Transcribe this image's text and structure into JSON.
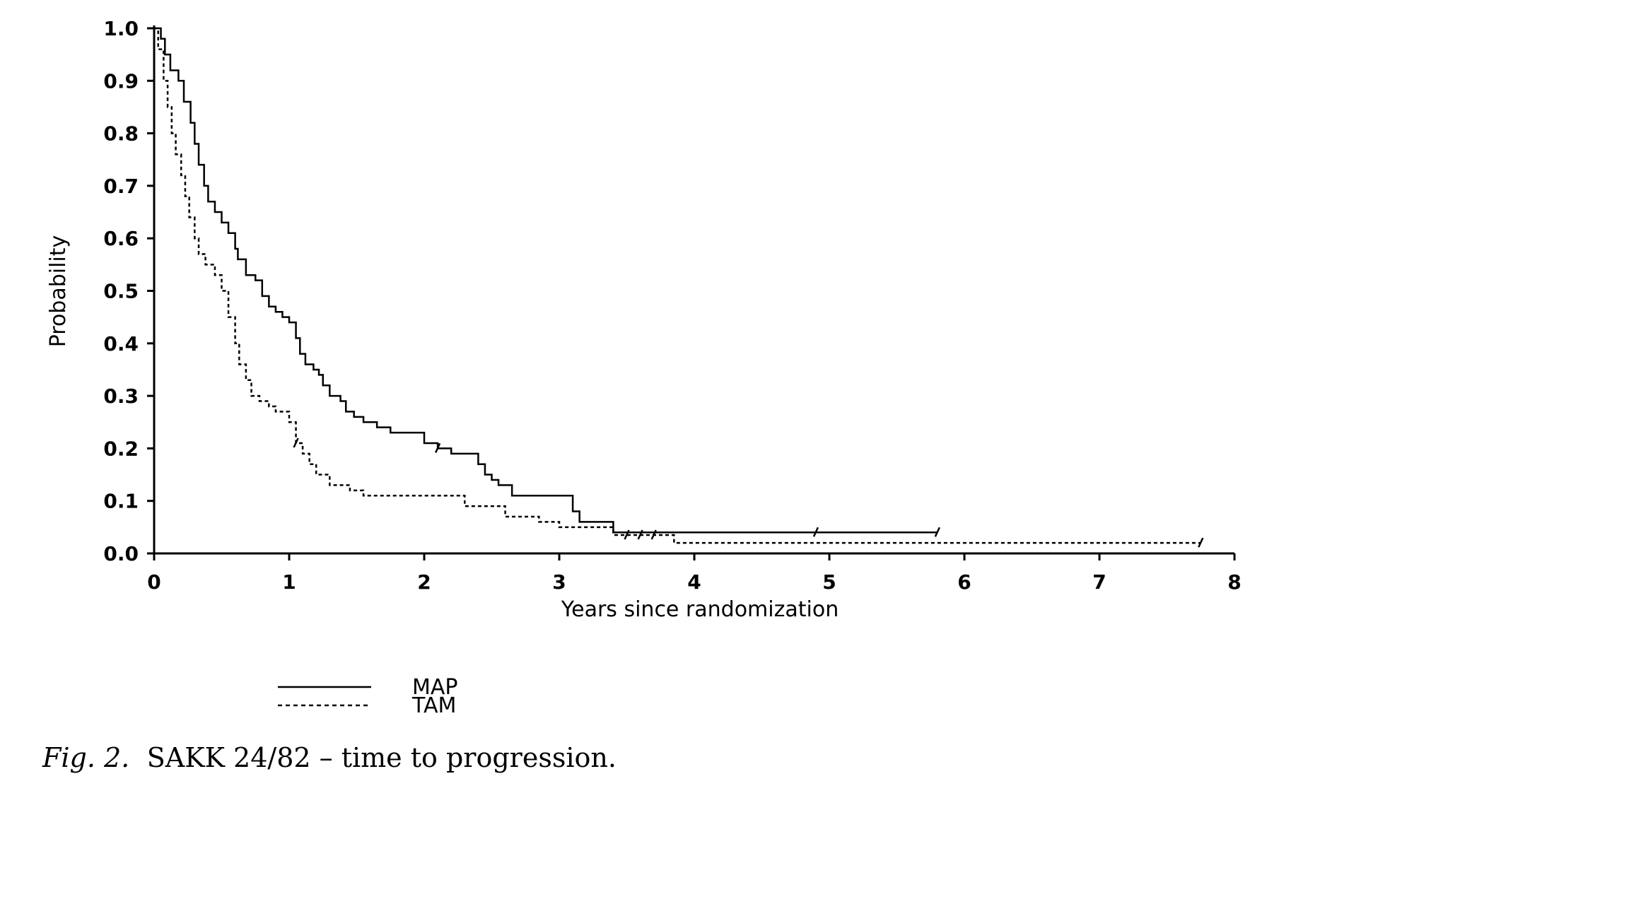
{
  "chart_data": {
    "type": "line",
    "subtype": "kaplan-meier step",
    "xlabel": "Years since randomization",
    "ylabel": "Probability",
    "xlim": [
      0,
      8
    ],
    "ylim": [
      0,
      1.0
    ],
    "x_ticks": [
      "0",
      "1",
      "2",
      "3",
      "4",
      "5",
      "6",
      "7",
      "8"
    ],
    "y_ticks": [
      "0.0",
      "0.1",
      "0.2",
      "0.3",
      "0.4",
      "0.5",
      "0.6",
      "0.7",
      "0.8",
      "0.9",
      "1.0"
    ],
    "grid": false,
    "legend_placement": "below",
    "series": [
      {
        "name": "MAP",
        "line_style": "solid",
        "color": "#000000",
        "points": [
          [
            0,
            1.0
          ],
          [
            0.05,
            0.98
          ],
          [
            0.08,
            0.95
          ],
          [
            0.12,
            0.92
          ],
          [
            0.18,
            0.9
          ],
          [
            0.22,
            0.86
          ],
          [
            0.27,
            0.82
          ],
          [
            0.3,
            0.78
          ],
          [
            0.33,
            0.74
          ],
          [
            0.37,
            0.7
          ],
          [
            0.4,
            0.67
          ],
          [
            0.45,
            0.65
          ],
          [
            0.5,
            0.63
          ],
          [
            0.55,
            0.61
          ],
          [
            0.6,
            0.58
          ],
          [
            0.62,
            0.56
          ],
          [
            0.68,
            0.53
          ],
          [
            0.75,
            0.52
          ],
          [
            0.8,
            0.49
          ],
          [
            0.85,
            0.47
          ],
          [
            0.9,
            0.46
          ],
          [
            0.95,
            0.45
          ],
          [
            1.0,
            0.44
          ],
          [
            1.05,
            0.41
          ],
          [
            1.08,
            0.38
          ],
          [
            1.12,
            0.36
          ],
          [
            1.18,
            0.35
          ],
          [
            1.22,
            0.34
          ],
          [
            1.25,
            0.32
          ],
          [
            1.3,
            0.3
          ],
          [
            1.38,
            0.29
          ],
          [
            1.42,
            0.27
          ],
          [
            1.48,
            0.26
          ],
          [
            1.55,
            0.25
          ],
          [
            1.65,
            0.24
          ],
          [
            1.75,
            0.23
          ],
          [
            2.0,
            0.21
          ],
          [
            2.1,
            0.2
          ],
          [
            2.2,
            0.19
          ],
          [
            2.4,
            0.17
          ],
          [
            2.45,
            0.15
          ],
          [
            2.5,
            0.14
          ],
          [
            2.55,
            0.13
          ],
          [
            2.65,
            0.11
          ],
          [
            3.1,
            0.08
          ],
          [
            3.15,
            0.06
          ],
          [
            3.4,
            0.04
          ],
          [
            5.8,
            0.04
          ]
        ],
        "censored_x": [
          2.1,
          4.9,
          5.8
        ]
      },
      {
        "name": "TAM",
        "line_style": "dashed",
        "color": "#000000",
        "points": [
          [
            0,
            1.0
          ],
          [
            0.03,
            0.96
          ],
          [
            0.07,
            0.9
          ],
          [
            0.1,
            0.85
          ],
          [
            0.13,
            0.8
          ],
          [
            0.16,
            0.76
          ],
          [
            0.2,
            0.72
          ],
          [
            0.23,
            0.68
          ],
          [
            0.26,
            0.64
          ],
          [
            0.3,
            0.6
          ],
          [
            0.33,
            0.57
          ],
          [
            0.38,
            0.55
          ],
          [
            0.45,
            0.53
          ],
          [
            0.5,
            0.5
          ],
          [
            0.55,
            0.45
          ],
          [
            0.6,
            0.4
          ],
          [
            0.63,
            0.36
          ],
          [
            0.68,
            0.33
          ],
          [
            0.72,
            0.3
          ],
          [
            0.78,
            0.29
          ],
          [
            0.85,
            0.28
          ],
          [
            0.9,
            0.27
          ],
          [
            1.0,
            0.25
          ],
          [
            1.05,
            0.21
          ],
          [
            1.1,
            0.19
          ],
          [
            1.15,
            0.17
          ],
          [
            1.2,
            0.15
          ],
          [
            1.3,
            0.13
          ],
          [
            1.45,
            0.12
          ],
          [
            1.55,
            0.11
          ],
          [
            2.3,
            0.09
          ],
          [
            2.6,
            0.07
          ],
          [
            2.85,
            0.06
          ],
          [
            3.0,
            0.05
          ],
          [
            3.4,
            0.035
          ],
          [
            3.85,
            0.02
          ],
          [
            7.75,
            0.02
          ]
        ],
        "censored_x": [
          1.05,
          3.5,
          3.6,
          3.7,
          7.75
        ]
      }
    ]
  },
  "legend": {
    "items": [
      {
        "label": "MAP",
        "line_style": "solid"
      },
      {
        "label": "TAM",
        "line_style": "dashed"
      }
    ]
  },
  "caption": {
    "figref": "Fig. 2.",
    "text": "SAKK 24/82 – time to progression."
  }
}
